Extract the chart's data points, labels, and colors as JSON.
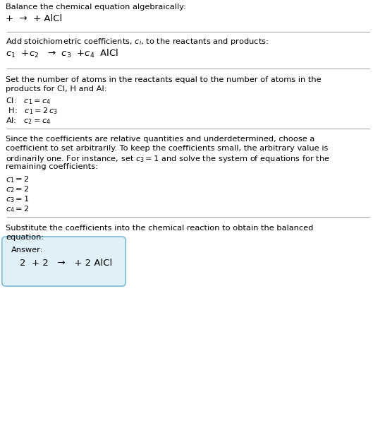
{
  "title_line1": "Balance the chemical equation algebraically:",
  "title_line2": "+  →  + AlCl",
  "sec2_header": "Add stoichiometric coefficients, $c_i$, to the reactants and products:",
  "sec2_eq": "$c_1$  +$c_2$   →  $c_3$  +$c_4$  AlCl",
  "sec3_h1": "Set the number of atoms in the reactants equal to the number of atoms in the",
  "sec3_h2": "products for Cl, H and Al:",
  "sec3_lines": [
    "Cl:   $c_1 = c_4$",
    " H:   $c_1 = 2\\,c_3$",
    "Al:   $c_2 = c_4$"
  ],
  "sec4_h1": "Since the coefficients are relative quantities and underdetermined, choose a",
  "sec4_h2": "coefficient to set arbitrarily. To keep the coefficients small, the arbitrary value is",
  "sec4_h3": "ordinarily one. For instance, set $c_3 = 1$ and solve the system of equations for the",
  "sec4_h4": "remaining coefficients:",
  "sec4_lines": [
    "$c_1 = 2$",
    "$c_2 = 2$",
    "$c_3 = 1$",
    "$c_4 = 2$"
  ],
  "sec5_h1": "Substitute the coefficients into the chemical reaction to obtain the balanced",
  "sec5_h2": "equation:",
  "answer_label": "Answer:",
  "answer_eq": "2  + 2   →   + 2 AlCl",
  "bg_color": "#ffffff",
  "text_color": "#000000",
  "answer_box_bg": "#dff0f8",
  "answer_box_border": "#7bbcda",
  "divider_color": "#aaaaaa"
}
